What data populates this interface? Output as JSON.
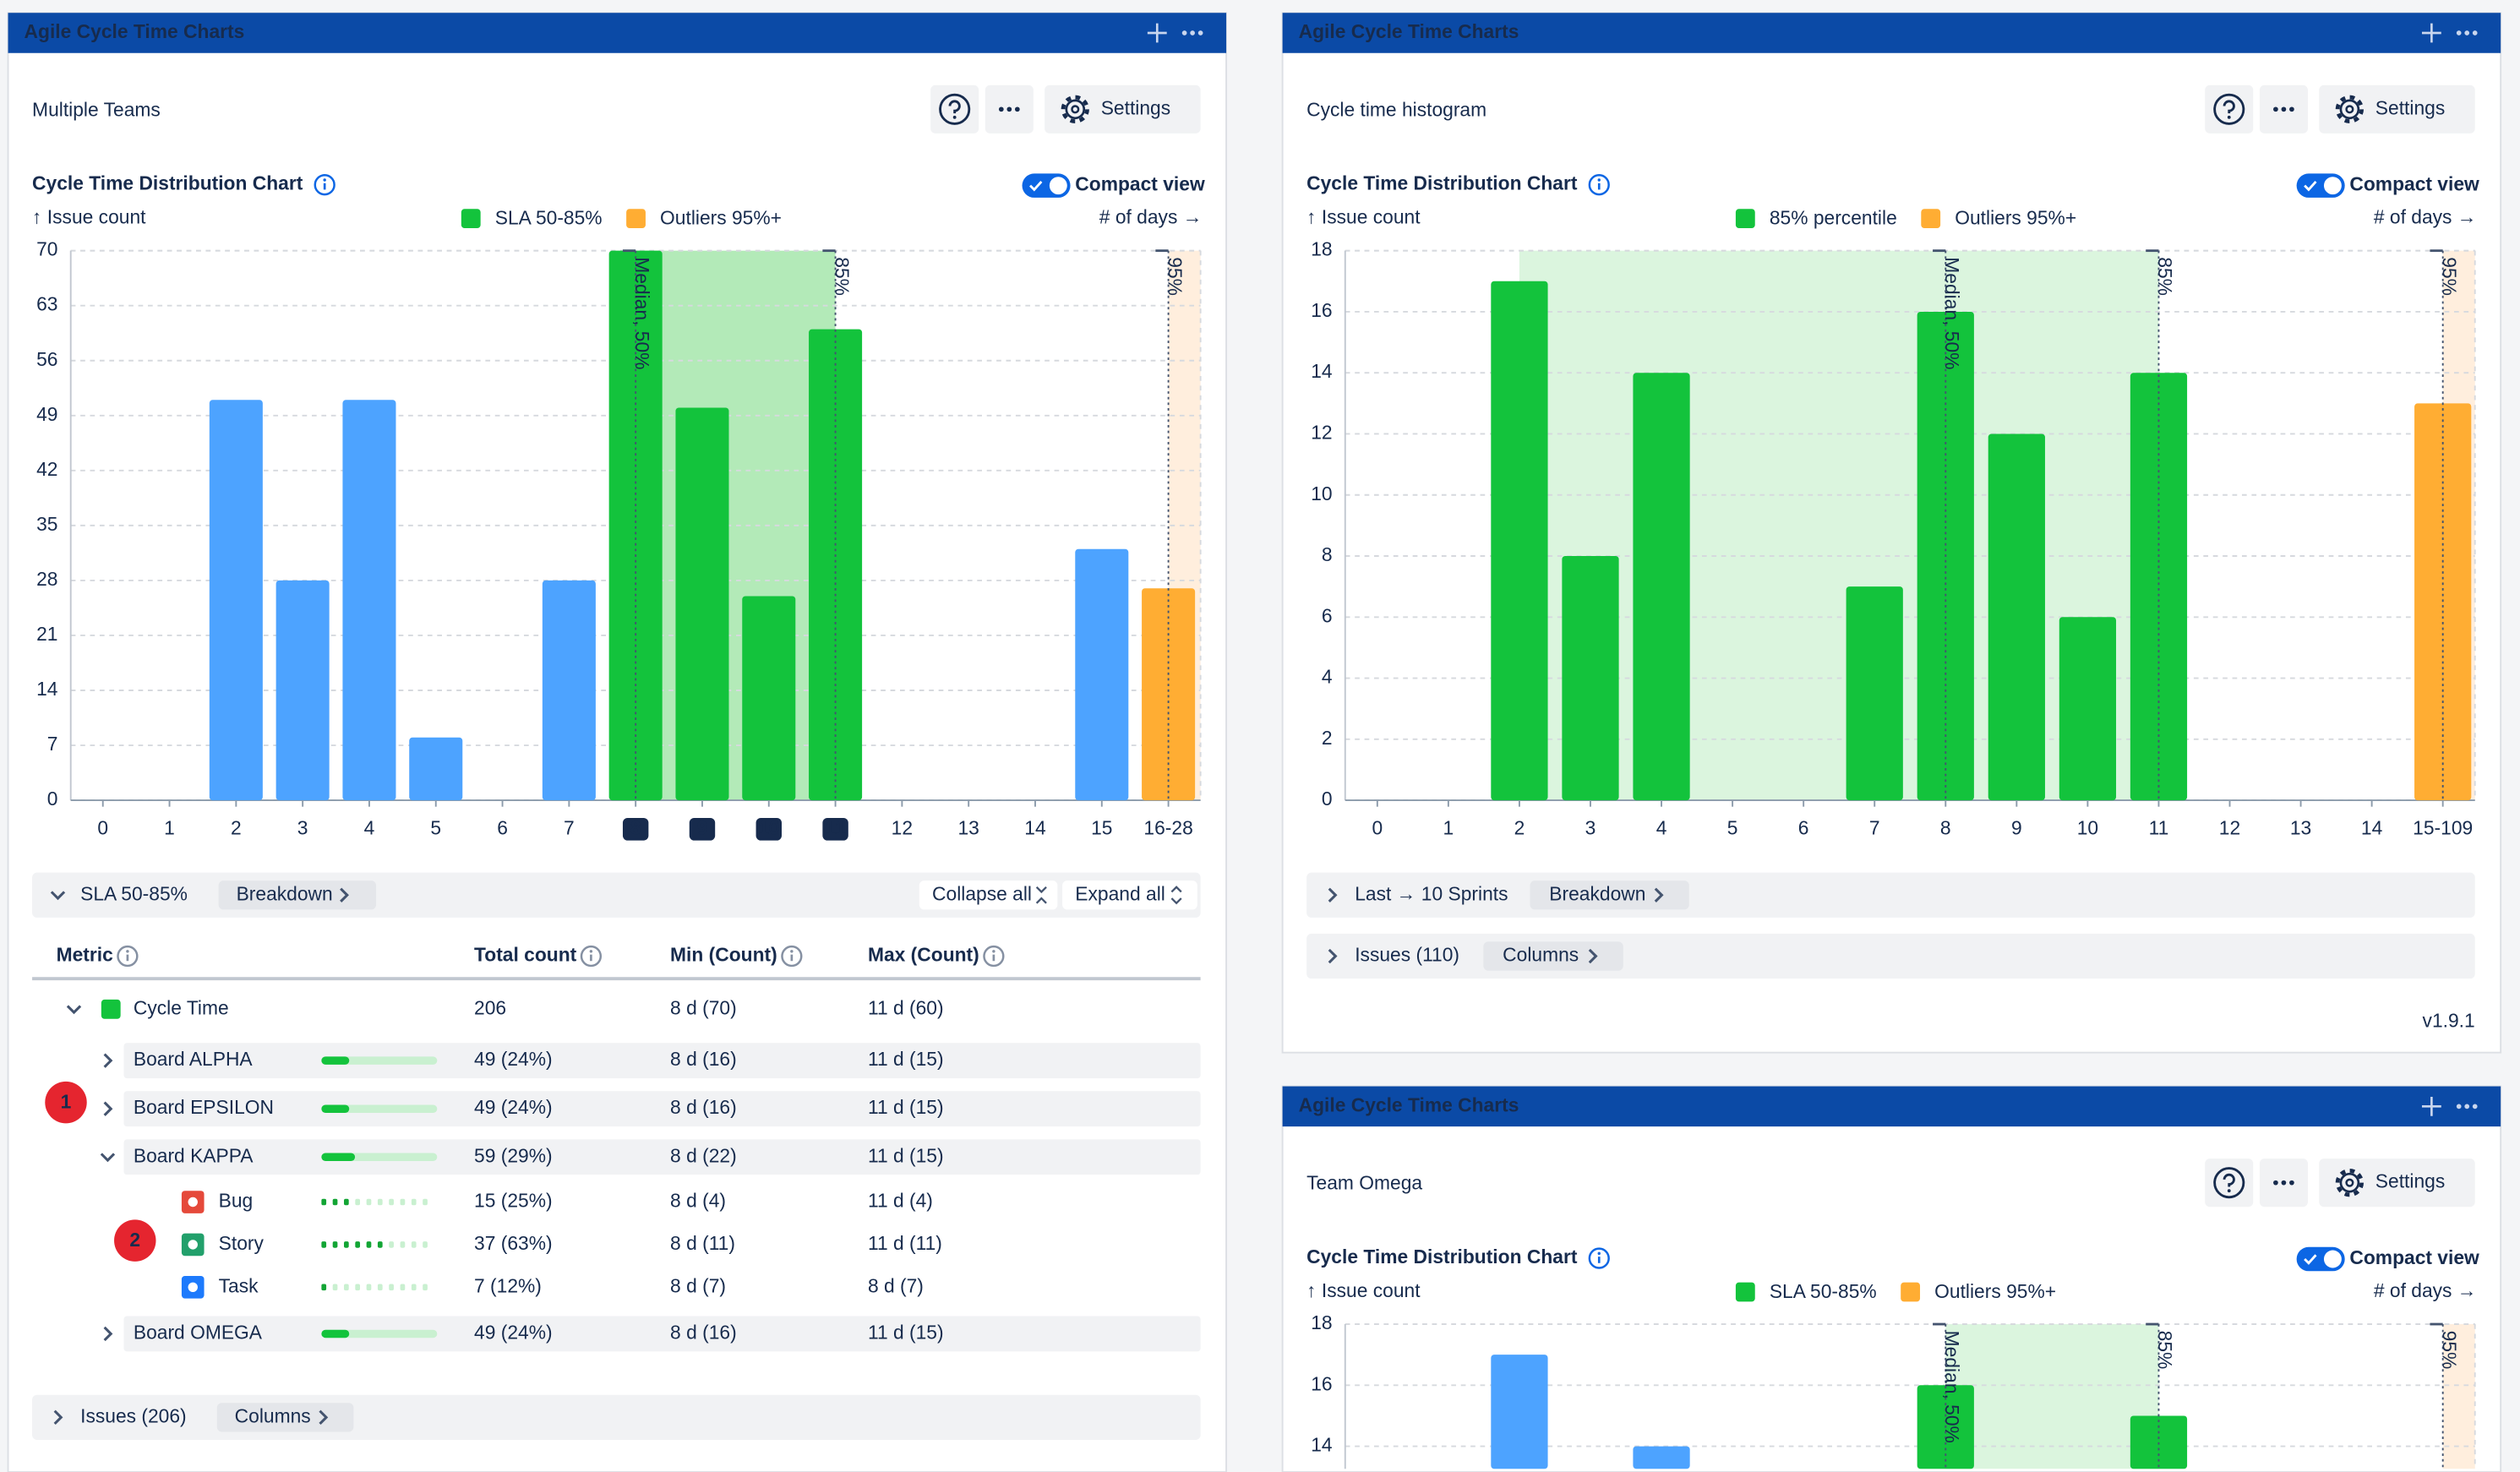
{
  "panels": [
    {
      "header": "Agile Cycle Time Charts",
      "title": "Multiple Teams",
      "settings": "Settings",
      "chart_heading": "Cycle Time Distribution Chart",
      "compact_view": "Compact view"
    },
    {
      "header": "Agile Cycle Time Charts",
      "title": "Cycle time histogram",
      "settings": "Settings",
      "chart_heading": "Cycle Time Distribution Chart",
      "compact_view": "Compact view"
    },
    {
      "header": "Agile Cycle Time Charts",
      "title": "Team Omega",
      "settings": "Settings",
      "chart_heading": "Cycle Time Distribution Chart",
      "compact_view": "Compact view"
    }
  ],
  "chart_data": [
    {
      "type": "bar",
      "y_label": "↑ Issue count",
      "x_label": "# of days →",
      "legend": [
        {
          "name": "SLA 50-85%",
          "color": "#13c33c"
        },
        {
          "name": "Outliers 95%+",
          "color": "#ffad33"
        }
      ],
      "categories": [
        "0",
        "1",
        "2",
        "3",
        "4",
        "5",
        "6",
        "7",
        "8",
        "9",
        "10",
        "11",
        "12",
        "13",
        "14",
        "15",
        "16-28"
      ],
      "values": [
        0,
        0,
        51,
        28,
        51,
        8,
        0,
        28,
        70,
        50,
        26,
        60,
        0,
        0,
        0,
        32,
        27
      ],
      "colors": [
        "#4da3ff",
        "#4da3ff",
        "#4da3ff",
        "#4da3ff",
        "#4da3ff",
        "#4da3ff",
        "#4da3ff",
        "#4da3ff",
        "#13c33c",
        "#13c33c",
        "#13c33c",
        "#13c33c",
        "#4da3ff",
        "#4da3ff",
        "#4da3ff",
        "#4da3ff",
        "#ffad33"
      ],
      "ylim": [
        0,
        70
      ],
      "yticks": [
        0,
        7,
        14,
        21,
        28,
        35,
        42,
        49,
        56,
        63,
        70
      ],
      "grid": true,
      "markers": [
        {
          "label": "Median, 50%",
          "category": "8"
        },
        {
          "label": "85%",
          "category": "11"
        },
        {
          "label": "95%",
          "category": "16-28"
        }
      ],
      "shade": {
        "from": "8",
        "to": "11",
        "color": "#b3eab8"
      },
      "outlier_shade": {
        "from": "16-28",
        "color": "#ffeedd"
      },
      "highlight_ticks": [
        "8",
        "9",
        "10",
        "11"
      ]
    },
    {
      "type": "bar",
      "y_label": "↑ Issue count",
      "x_label": "# of days →",
      "legend": [
        {
          "name": "85% percentile",
          "color": "#13c33c"
        },
        {
          "name": "Outliers 95%+",
          "color": "#ffad33"
        }
      ],
      "categories": [
        "0",
        "1",
        "2",
        "3",
        "4",
        "5",
        "6",
        "7",
        "8",
        "9",
        "10",
        "11",
        "12",
        "13",
        "14",
        "15-109"
      ],
      "values": [
        0,
        0,
        17,
        8,
        14,
        0,
        0,
        7,
        16,
        12,
        6,
        14,
        0,
        0,
        0,
        13
      ],
      "colors": [
        "#13c33c",
        "#13c33c",
        "#13c33c",
        "#13c33c",
        "#13c33c",
        "#13c33c",
        "#13c33c",
        "#13c33c",
        "#13c33c",
        "#13c33c",
        "#13c33c",
        "#13c33c",
        "#13c33c",
        "#13c33c",
        "#13c33c",
        "#ffad33"
      ],
      "ylim": [
        0,
        18
      ],
      "yticks": [
        0,
        2,
        4,
        6,
        8,
        10,
        12,
        14,
        16,
        18
      ],
      "grid": true,
      "markers": [
        {
          "label": "Median, 50%",
          "category": "8"
        },
        {
          "label": "85%",
          "category": "11"
        },
        {
          "label": "95%",
          "category": "15-109"
        }
      ],
      "shade": {
        "from": "2",
        "to": "11",
        "color": "#dbf5de"
      },
      "outlier_shade": {
        "from": "15-109",
        "color": "#ffeedd"
      }
    },
    {
      "type": "bar",
      "y_label": "↑ Issue count",
      "x_label": "# of days →",
      "legend": [
        {
          "name": "SLA 50-85%",
          "color": "#13c33c"
        },
        {
          "name": "Outliers 95%+",
          "color": "#ffad33"
        }
      ],
      "categories": [
        "0",
        "1",
        "2",
        "3",
        "4",
        "5",
        "6",
        "7",
        "8",
        "9",
        "10",
        "11",
        "12",
        "13",
        "14",
        "15-109"
      ],
      "values": [
        null,
        null,
        17,
        null,
        14,
        null,
        null,
        null,
        16,
        null,
        null,
        15,
        null,
        null,
        null,
        null
      ],
      "colors": [
        "#4da3ff",
        "#4da3ff",
        "#4da3ff",
        "#4da3ff",
        "#4da3ff",
        "#4da3ff",
        "#4da3ff",
        "#4da3ff",
        "#13c33c",
        "#13c33c",
        "#13c33c",
        "#13c33c",
        "#4da3ff",
        "#4da3ff",
        "#4da3ff",
        "#ffad33"
      ],
      "ylim": [
        0,
        18
      ],
      "yticks": [
        14,
        16,
        18
      ],
      "grid": true,
      "markers": [
        {
          "label": "Median, 50%",
          "category": "8"
        },
        {
          "label": "85%",
          "category": "11"
        },
        {
          "label": "95%",
          "category": "15-109"
        }
      ],
      "shade": {
        "from": "8",
        "to": "11",
        "color": "#dbf5de"
      },
      "outlier_shade": {
        "from": "15-109",
        "color": "#ffeedd"
      }
    }
  ],
  "breakdown": {
    "label": "SLA 50-85%",
    "button": "Breakdown",
    "collapse": "Collapse all",
    "expand": "Expand all"
  },
  "table": {
    "columns": [
      "Metric",
      "Total count",
      "Min (Count)",
      "Max (Count)"
    ],
    "rows": [
      {
        "label": "Cycle Time",
        "total": "206",
        "min": "8 d (70)",
        "max": "11 d (60)",
        "children": [
          {
            "label": "Board ALPHA",
            "total": "49 (24%)",
            "share": 24,
            "min": "8 d (16)",
            "max": "11 d (15)"
          },
          {
            "label": "Board EPSILON",
            "total": "49 (24%)",
            "share": 24,
            "min": "8 d (16)",
            "max": "11 d (15)"
          },
          {
            "label": "Board KAPPA",
            "total": "59 (29%)",
            "share": 29,
            "min": "8 d (22)",
            "max": "11 d (15)",
            "children": [
              {
                "label": "Bug",
                "total": "15 (25%)",
                "share": 25,
                "min": "8 d (4)",
                "max": "11 d (4)"
              },
              {
                "label": "Story",
                "total": "37 (63%)",
                "share": 63,
                "min": "8 d (11)",
                "max": "11 d (11)"
              },
              {
                "label": "Task",
                "total": "7 (12%)",
                "share": 12,
                "min": "8 d (7)",
                "max": "8 d (7)"
              }
            ]
          },
          {
            "label": "Board OMEGA",
            "total": "49 (24%)",
            "share": 24,
            "min": "8 d (16)",
            "max": "11 d (15)"
          }
        ]
      }
    ]
  },
  "issues": {
    "label": "Issues (206)",
    "button": "Columns"
  },
  "histogram_rows": {
    "sprints": "Last → 10 Sprints",
    "breakdown": "Breakdown",
    "issues": "Issues (110)",
    "columns": "Columns",
    "version": "v1.9.1"
  },
  "callouts": [
    "1",
    "2"
  ]
}
